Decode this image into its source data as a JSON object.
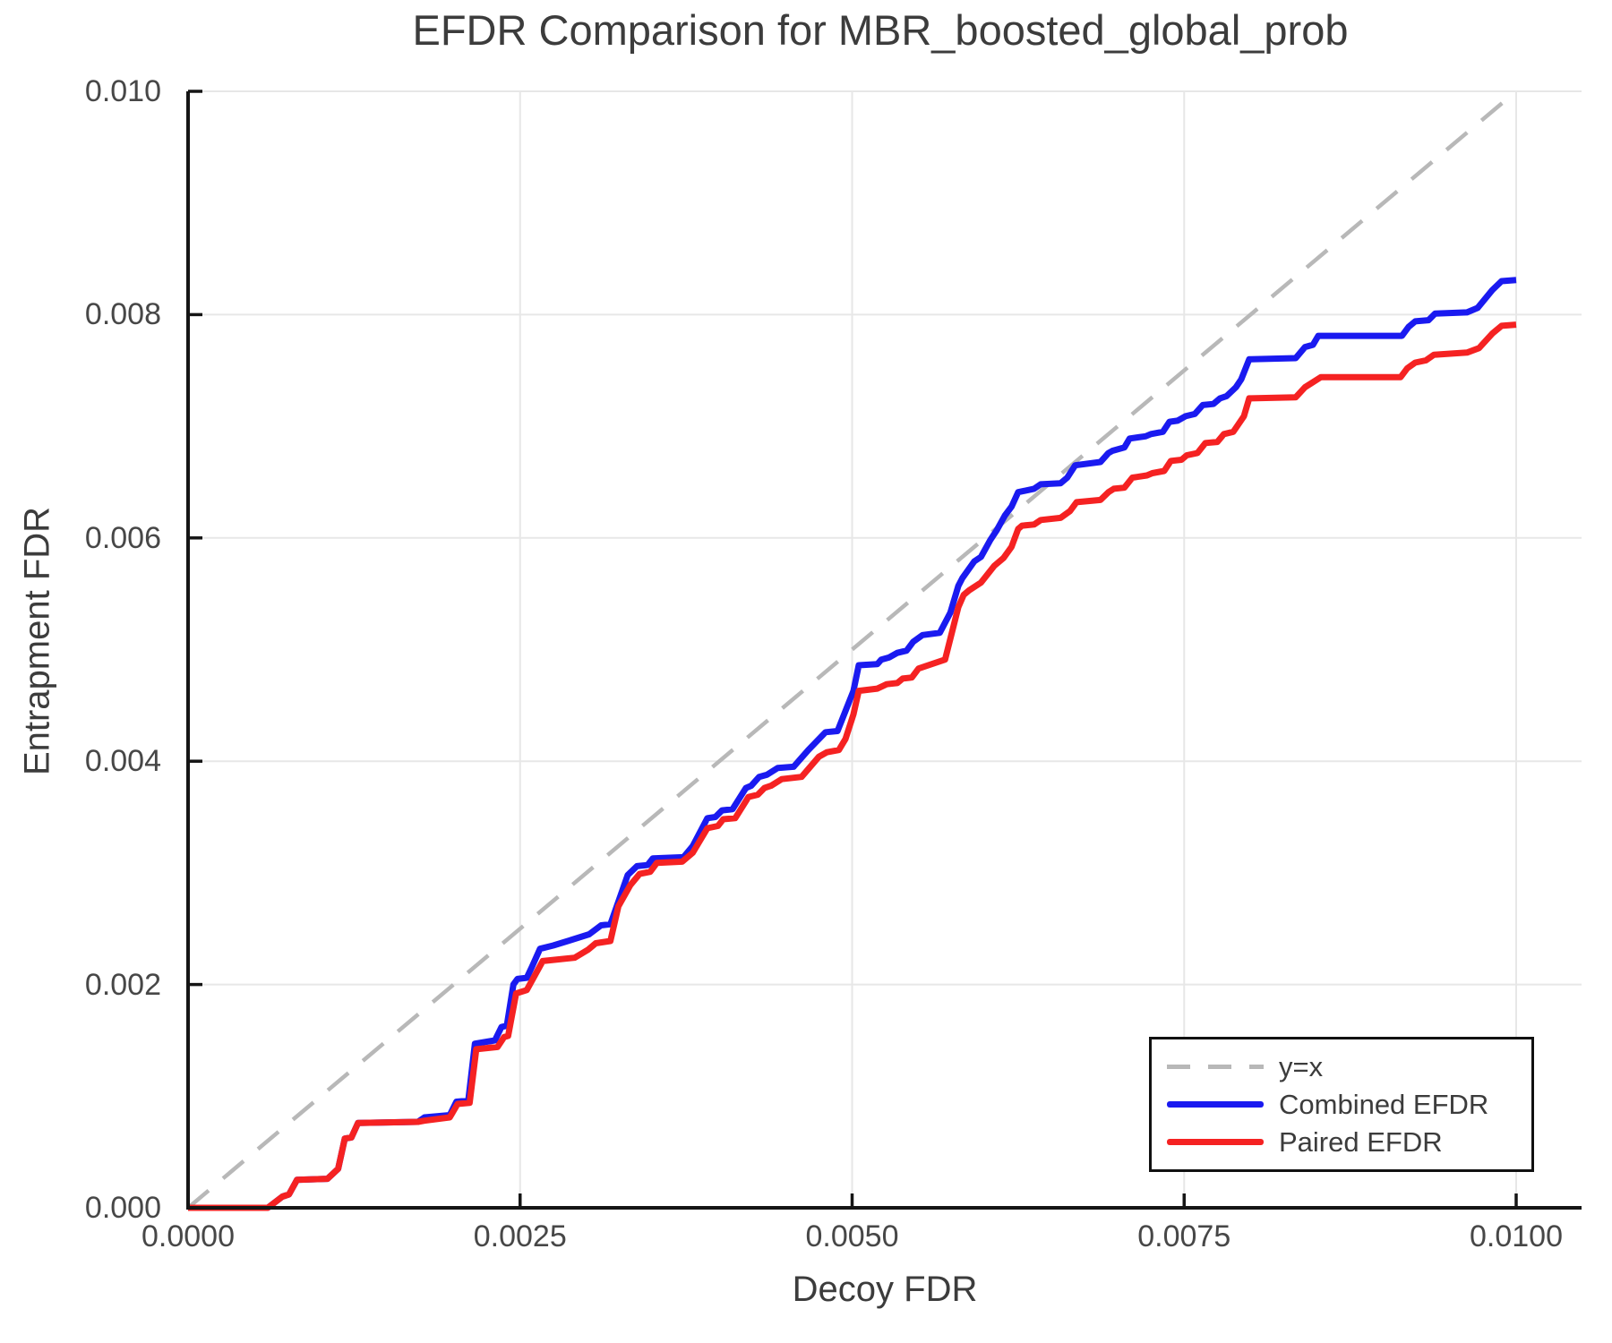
{
  "chart_data": {
    "type": "line",
    "title": "EFDR Comparison for MBR_boosted_global_prob",
    "xlabel": "Decoy FDR",
    "ylabel": "Entrapment FDR",
    "xlim": [
      0.0,
      0.0105
    ],
    "ylim": [
      0.0,
      0.01
    ],
    "grid": true,
    "legend_position": "bottom-right",
    "x_ticks": [
      0.0,
      0.0025,
      0.005,
      0.0075,
      0.01
    ],
    "x_tick_labels": [
      "0.0000",
      "0.0025",
      "0.0050",
      "0.0075",
      "0.0100"
    ],
    "y_ticks": [
      0.0,
      0.002,
      0.004,
      0.006,
      0.008,
      0.01
    ],
    "y_tick_labels": [
      "0.000",
      "0.002",
      "0.004",
      "0.006",
      "0.008",
      "0.010"
    ],
    "axis_color": "#151515",
    "gridline_color": "#e7e7e7",
    "text_color": "#3c3c3c",
    "series": [
      {
        "name": "y=x",
        "style": "dashed",
        "color": "#b8b8b8",
        "points": [
          [
            0.0,
            0.0
          ],
          [
            0.01,
            0.01
          ]
        ]
      },
      {
        "name": "Combined EFDR",
        "style": "solid",
        "color": "#1a1af0",
        "points": [
          [
            0.0,
            0.0
          ],
          [
            0.0006,
            0.0
          ],
          [
            0.00071,
            0.0001
          ],
          [
            0.00076,
            0.00012
          ],
          [
            0.00082,
            0.00025
          ],
          [
            0.00105,
            0.00026
          ],
          [
            0.00113,
            0.00035
          ],
          [
            0.00118,
            0.00062
          ],
          [
            0.00123,
            0.00063
          ],
          [
            0.00128,
            0.00076
          ],
          [
            0.00173,
            0.00077
          ],
          [
            0.00178,
            0.00081
          ],
          [
            0.00197,
            0.00083
          ],
          [
            0.00202,
            0.00095
          ],
          [
            0.00211,
            0.00096
          ],
          [
            0.00216,
            0.00147
          ],
          [
            0.00231,
            0.0015
          ],
          [
            0.00236,
            0.00162
          ],
          [
            0.0024,
            0.00163
          ],
          [
            0.00245,
            0.002
          ],
          [
            0.00248,
            0.00205
          ],
          [
            0.00255,
            0.00206
          ],
          [
            0.00259,
            0.00216
          ],
          [
            0.00265,
            0.00232
          ],
          [
            0.00275,
            0.00235
          ],
          [
            0.00286,
            0.00239
          ],
          [
            0.00302,
            0.00245
          ],
          [
            0.00311,
            0.00253
          ],
          [
            0.00318,
            0.00254
          ],
          [
            0.00326,
            0.00281
          ],
          [
            0.00331,
            0.00298
          ],
          [
            0.00338,
            0.00306
          ],
          [
            0.00346,
            0.00307
          ],
          [
            0.0035,
            0.00313
          ],
          [
            0.00373,
            0.00314
          ],
          [
            0.0038,
            0.00324
          ],
          [
            0.00391,
            0.00349
          ],
          [
            0.00397,
            0.0035
          ],
          [
            0.00402,
            0.00356
          ],
          [
            0.0041,
            0.00357
          ],
          [
            0.0042,
            0.00376
          ],
          [
            0.00424,
            0.00378
          ],
          [
            0.0043,
            0.00386
          ],
          [
            0.00436,
            0.00388
          ],
          [
            0.00444,
            0.00394
          ],
          [
            0.00456,
            0.00395
          ],
          [
            0.00467,
            0.0041
          ],
          [
            0.0048,
            0.00426
          ],
          [
            0.00489,
            0.00427
          ],
          [
            0.00495,
            0.00445
          ],
          [
            0.00501,
            0.00463
          ],
          [
            0.00505,
            0.00486
          ],
          [
            0.00519,
            0.00487
          ],
          [
            0.00522,
            0.00491
          ],
          [
            0.00528,
            0.00493
          ],
          [
            0.00534,
            0.00497
          ],
          [
            0.00541,
            0.00499
          ],
          [
            0.00546,
            0.00507
          ],
          [
            0.00553,
            0.00513
          ],
          [
            0.00566,
            0.00515
          ],
          [
            0.00574,
            0.00533
          ],
          [
            0.0058,
            0.00557
          ],
          [
            0.00583,
            0.00564
          ],
          [
            0.00592,
            0.00579
          ],
          [
            0.00597,
            0.00583
          ],
          [
            0.00604,
            0.00598
          ],
          [
            0.00609,
            0.00607
          ],
          [
            0.00615,
            0.0062
          ],
          [
            0.0062,
            0.00628
          ],
          [
            0.00625,
            0.00641
          ],
          [
            0.00637,
            0.00644
          ],
          [
            0.00642,
            0.00648
          ],
          [
            0.00657,
            0.00649
          ],
          [
            0.00662,
            0.00654
          ],
          [
            0.00668,
            0.00665
          ],
          [
            0.00687,
            0.00668
          ],
          [
            0.00693,
            0.00676
          ],
          [
            0.00696,
            0.00678
          ],
          [
            0.00705,
            0.00681
          ],
          [
            0.00709,
            0.00689
          ],
          [
            0.00721,
            0.00691
          ],
          [
            0.00725,
            0.00693
          ],
          [
            0.00734,
            0.00695
          ],
          [
            0.00739,
            0.00704
          ],
          [
            0.00745,
            0.00705
          ],
          [
            0.00751,
            0.00709
          ],
          [
            0.00758,
            0.00711
          ],
          [
            0.00764,
            0.00719
          ],
          [
            0.00772,
            0.0072
          ],
          [
            0.00777,
            0.00725
          ],
          [
            0.00782,
            0.00727
          ],
          [
            0.00789,
            0.00735
          ],
          [
            0.00793,
            0.00742
          ],
          [
            0.00799,
            0.0076
          ],
          [
            0.00834,
            0.00761
          ],
          [
            0.00841,
            0.00771
          ],
          [
            0.00847,
            0.00773
          ],
          [
            0.00851,
            0.00781
          ],
          [
            0.00914,
            0.00781
          ],
          [
            0.00919,
            0.00789
          ],
          [
            0.00924,
            0.00794
          ],
          [
            0.00934,
            0.00795
          ],
          [
            0.00939,
            0.00801
          ],
          [
            0.00963,
            0.00802
          ],
          [
            0.00971,
            0.00806
          ],
          [
            0.00982,
            0.00822
          ],
          [
            0.00989,
            0.0083
          ],
          [
            0.01,
            0.00831
          ]
        ]
      },
      {
        "name": "Paired EFDR",
        "style": "solid",
        "color": "#f52222",
        "points": [
          [
            0.0,
            0.0
          ],
          [
            0.0006,
            0.0
          ],
          [
            0.00071,
            0.0001
          ],
          [
            0.00076,
            0.00012
          ],
          [
            0.00082,
            0.00025
          ],
          [
            0.00105,
            0.00026
          ],
          [
            0.00113,
            0.00035
          ],
          [
            0.00118,
            0.00062
          ],
          [
            0.00123,
            0.00063
          ],
          [
            0.00128,
            0.00076
          ],
          [
            0.00173,
            0.00077
          ],
          [
            0.00178,
            0.00078
          ],
          [
            0.00197,
            0.00081
          ],
          [
            0.00203,
            0.00093
          ],
          [
            0.00212,
            0.00094
          ],
          [
            0.00217,
            0.00142
          ],
          [
            0.00233,
            0.00144
          ],
          [
            0.00238,
            0.00153
          ],
          [
            0.00241,
            0.00154
          ],
          [
            0.00247,
            0.00192
          ],
          [
            0.00255,
            0.00195
          ],
          [
            0.00267,
            0.00221
          ],
          [
            0.00291,
            0.00224
          ],
          [
            0.00301,
            0.00231
          ],
          [
            0.00307,
            0.00237
          ],
          [
            0.00318,
            0.00239
          ],
          [
            0.00324,
            0.0027
          ],
          [
            0.00333,
            0.00289
          ],
          [
            0.0034,
            0.00299
          ],
          [
            0.00348,
            0.00301
          ],
          [
            0.00353,
            0.00309
          ],
          [
            0.00372,
            0.0031
          ],
          [
            0.0038,
            0.00318
          ],
          [
            0.00391,
            0.0034
          ],
          [
            0.00399,
            0.00342
          ],
          [
            0.00403,
            0.00348
          ],
          [
            0.00412,
            0.00349
          ],
          [
            0.00422,
            0.00368
          ],
          [
            0.00429,
            0.0037
          ],
          [
            0.00434,
            0.00376
          ],
          [
            0.00439,
            0.00378
          ],
          [
            0.00447,
            0.00384
          ],
          [
            0.00462,
            0.00386
          ],
          [
            0.00475,
            0.00404
          ],
          [
            0.00481,
            0.00408
          ],
          [
            0.0049,
            0.0041
          ],
          [
            0.00495,
            0.0042
          ],
          [
            0.00501,
            0.00442
          ],
          [
            0.00505,
            0.00463
          ],
          [
            0.00519,
            0.00465
          ],
          [
            0.00526,
            0.00469
          ],
          [
            0.00534,
            0.0047
          ],
          [
            0.00538,
            0.00474
          ],
          [
            0.00545,
            0.00475
          ],
          [
            0.0055,
            0.00483
          ],
          [
            0.0057,
            0.00491
          ],
          [
            0.0058,
            0.00538
          ],
          [
            0.00584,
            0.00549
          ],
          [
            0.00588,
            0.00553
          ],
          [
            0.00597,
            0.0056
          ],
          [
            0.00607,
            0.00575
          ],
          [
            0.00614,
            0.00582
          ],
          [
            0.0062,
            0.00592
          ],
          [
            0.00625,
            0.00608
          ],
          [
            0.00628,
            0.00611
          ],
          [
            0.00637,
            0.00612
          ],
          [
            0.00642,
            0.00616
          ],
          [
            0.00657,
            0.00618
          ],
          [
            0.00664,
            0.00624
          ],
          [
            0.00669,
            0.00632
          ],
          [
            0.00687,
            0.00634
          ],
          [
            0.00693,
            0.00641
          ],
          [
            0.00697,
            0.00644
          ],
          [
            0.00705,
            0.00645
          ],
          [
            0.00711,
            0.00654
          ],
          [
            0.00722,
            0.00656
          ],
          [
            0.00726,
            0.00658
          ],
          [
            0.00735,
            0.0066
          ],
          [
            0.0074,
            0.00669
          ],
          [
            0.00748,
            0.0067
          ],
          [
            0.00752,
            0.00674
          ],
          [
            0.0076,
            0.00676
          ],
          [
            0.00766,
            0.00685
          ],
          [
            0.00775,
            0.00686
          ],
          [
            0.0078,
            0.00693
          ],
          [
            0.00787,
            0.00695
          ],
          [
            0.00795,
            0.00709
          ],
          [
            0.00799,
            0.00725
          ],
          [
            0.00834,
            0.00726
          ],
          [
            0.00841,
            0.00735
          ],
          [
            0.00853,
            0.00744
          ],
          [
            0.00913,
            0.00744
          ],
          [
            0.00918,
            0.00752
          ],
          [
            0.00924,
            0.00757
          ],
          [
            0.00932,
            0.00759
          ],
          [
            0.00938,
            0.00764
          ],
          [
            0.00963,
            0.00766
          ],
          [
            0.00972,
            0.0077
          ],
          [
            0.00982,
            0.00783
          ],
          [
            0.00989,
            0.0079
          ],
          [
            0.01,
            0.00791
          ]
        ]
      }
    ]
  }
}
